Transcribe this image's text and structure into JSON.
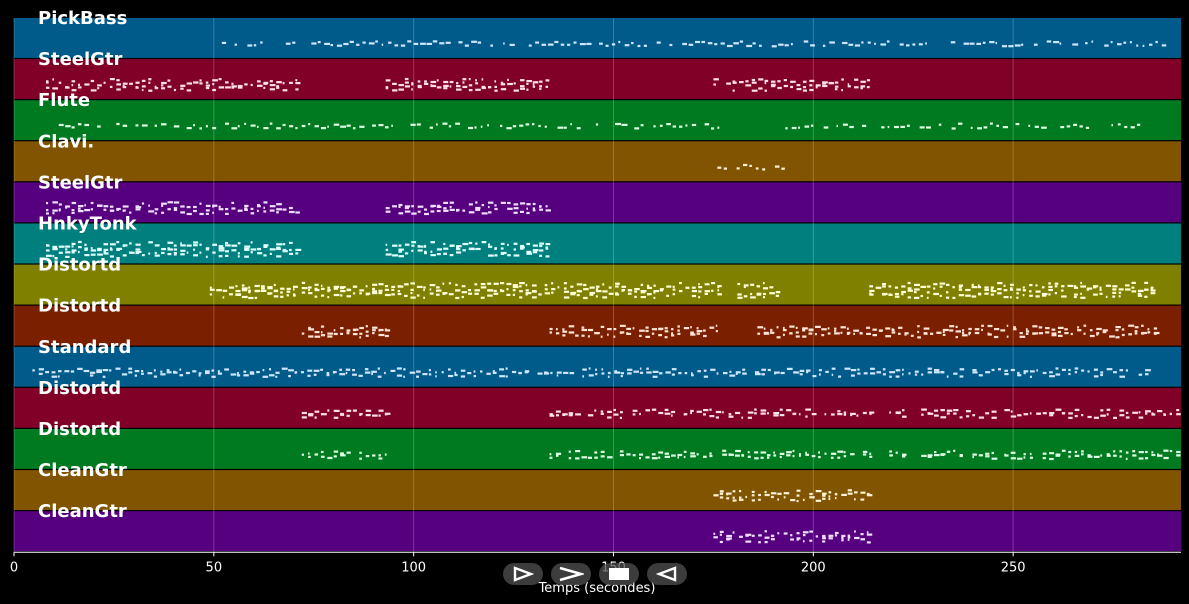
{
  "chart_data": {
    "type": "piano-roll",
    "xlabel": "Temps (secondes)",
    "xlim": [
      0,
      292
    ],
    "x_ticks": [
      0,
      50,
      100,
      150,
      200,
      250
    ],
    "grid": true,
    "tracks": [
      {
        "label": "PickBass",
        "color": "#005a8a",
        "segments": [
          [
            52,
            288
          ]
        ],
        "density": 1,
        "note_color": "#cfe8ff"
      },
      {
        "label": "SteelGtr",
        "color": "#800028",
        "segments": [
          [
            8,
            71
          ],
          [
            93,
            134
          ],
          [
            175,
            214
          ]
        ],
        "density": 3,
        "note_color": "#ffe0ea"
      },
      {
        "label": "Flute",
        "color": "#007a20",
        "segments": [
          [
            8,
            176
          ],
          [
            193,
            284
          ]
        ],
        "density": 1,
        "note_color": "#dfffe6"
      },
      {
        "label": "Clavi.",
        "color": "#805400",
        "segments": [
          [
            176,
            192
          ]
        ],
        "density": 1,
        "note_color": "#fff2d6"
      },
      {
        "label": "SteelGtr",
        "color": "#560080",
        "segments": [
          [
            8,
            71
          ],
          [
            93,
            134
          ]
        ],
        "density": 3,
        "note_color": "#f0e0ff"
      },
      {
        "label": "HnkyTonk",
        "color": "#007f7f",
        "segments": [
          [
            8,
            71
          ],
          [
            93,
            134
          ]
        ],
        "density": 4,
        "note_color": "#e0ffff"
      },
      {
        "label": "Distortd",
        "color": "#7f7f00",
        "segments": [
          [
            49,
            71
          ],
          [
            72,
            176
          ],
          [
            181,
            192
          ],
          [
            214,
            286
          ]
        ],
        "density": 4,
        "note_color": "#ffffd8"
      },
      {
        "label": "Distortd",
        "color": "#7a2000",
        "segments": [
          [
            72,
            93
          ],
          [
            134,
            176
          ],
          [
            186,
            286
          ]
        ],
        "density": 3,
        "note_color": "#ffe4d8"
      },
      {
        "label": "Standard",
        "color": "#005a8a",
        "segments": [
          [
            3,
            286
          ]
        ],
        "density": 2,
        "note_color": "#cfe8ff"
      },
      {
        "label": "Distortd",
        "color": "#800028",
        "segments": [
          [
            72,
            93
          ],
          [
            134,
            214
          ],
          [
            219,
            223
          ],
          [
            227,
            286
          ],
          [
            286,
            291
          ]
        ],
        "density": 2,
        "note_color": "#ffe0ea"
      },
      {
        "label": "Distortd",
        "color": "#007a20",
        "segments": [
          [
            72,
            93
          ],
          [
            134,
            214
          ],
          [
            219,
            223
          ],
          [
            227,
            286
          ],
          [
            286,
            291
          ]
        ],
        "density": 2,
        "note_color": "#dfffe6"
      },
      {
        "label": "CleanGtr",
        "color": "#805400",
        "segments": [
          [
            175,
            214
          ]
        ],
        "density": 3,
        "note_color": "#fff2d6"
      },
      {
        "label": "CleanGtr",
        "color": "#560080",
        "segments": [
          [
            175,
            214
          ]
        ],
        "density": 3,
        "note_color": "#f0e0ff"
      }
    ]
  },
  "controls": [
    {
      "icon": "play-icon"
    },
    {
      "icon": "fast-forward-icon"
    },
    {
      "icon": "stop-icon"
    },
    {
      "icon": "rewind-icon"
    }
  ]
}
